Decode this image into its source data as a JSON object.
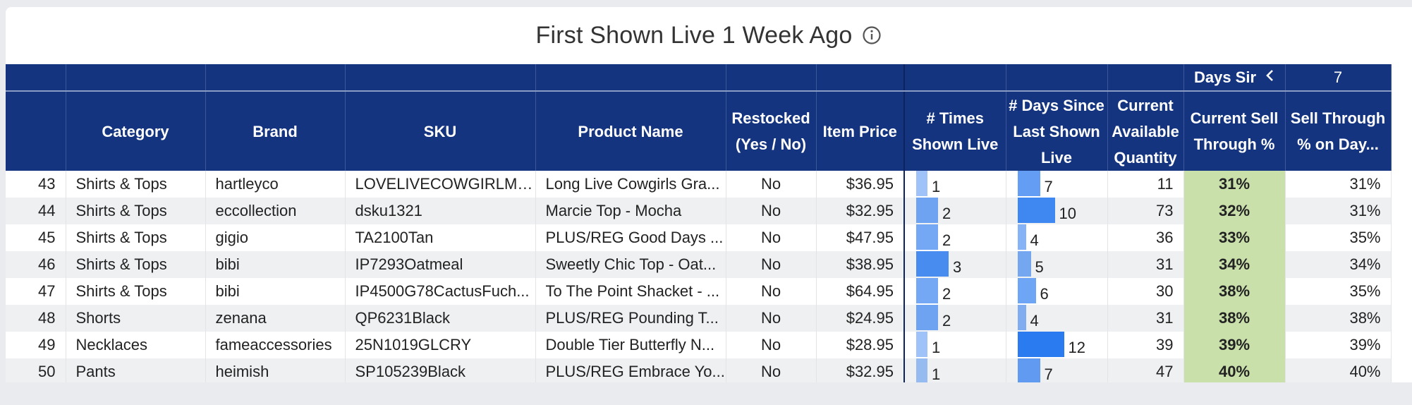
{
  "title": "First Shown Live 1 Week Ago",
  "icons": {
    "info": "info-icon",
    "chevron": "chevron-left-icon"
  },
  "header_top": {
    "days_since_label": "Days Sir",
    "days_value": "7"
  },
  "columns": {
    "category": "Category",
    "brand": "Brand",
    "sku": "SKU",
    "product_name": "Product Name",
    "restocked": "Restocked (Yes / No)",
    "item_price": "Item Price",
    "times_shown": "# Times Shown Live",
    "days_since": "# Days Since Last Shown Live",
    "available_qty": "Current Available Quantity",
    "sell_through": "Current Sell Through %",
    "sell_through_day": "Sell Through % on Day..."
  },
  "colors": {
    "header": "#14347f",
    "sell_highlight": "#c9e0ab",
    "bar": "#2a7af0"
  },
  "rows": [
    {
      "n": "43",
      "category": "Shirts & Tops",
      "brand": "hartleyco",
      "sku": "LOVELIVECOWGIRLMulti",
      "product": "Long Live Cowgirls Gra...",
      "restocked": "No",
      "price": "$36.95",
      "times": "1",
      "days": "7",
      "qty": "11",
      "sell": "31%",
      "sellday": "31%"
    },
    {
      "n": "44",
      "category": "Shirts & Tops",
      "brand": "eccollection",
      "sku": "dsku1321",
      "product": "Marcie Top - Mocha",
      "restocked": "No",
      "price": "$32.95",
      "times": "2",
      "days": "10",
      "qty": "73",
      "sell": "32%",
      "sellday": "31%"
    },
    {
      "n": "45",
      "category": "Shirts & Tops",
      "brand": "gigio",
      "sku": "TA2100Tan",
      "product": "PLUS/REG Good Days ...",
      "restocked": "No",
      "price": "$47.95",
      "times": "2",
      "days": "4",
      "qty": "36",
      "sell": "33%",
      "sellday": "35%"
    },
    {
      "n": "46",
      "category": "Shirts & Tops",
      "brand": "bibi",
      "sku": "IP7293Oatmeal",
      "product": "Sweetly Chic Top - Oat...",
      "restocked": "No",
      "price": "$38.95",
      "times": "3",
      "days": "5",
      "qty": "31",
      "sell": "34%",
      "sellday": "34%"
    },
    {
      "n": "47",
      "category": "Shirts & Tops",
      "brand": "bibi",
      "sku": "IP4500G78CactusFuch...",
      "product": "To The Point Shacket - ...",
      "restocked": "No",
      "price": "$64.95",
      "times": "2",
      "days": "6",
      "qty": "30",
      "sell": "38%",
      "sellday": "35%"
    },
    {
      "n": "48",
      "category": "Shorts",
      "brand": "zenana",
      "sku": "QP6231Black",
      "product": "PLUS/REG Pounding T...",
      "restocked": "No",
      "price": "$24.95",
      "times": "2",
      "days": "4",
      "qty": "31",
      "sell": "38%",
      "sellday": "38%"
    },
    {
      "n": "49",
      "category": "Necklaces",
      "brand": "fameaccessories",
      "sku": "25N1019GLCRY",
      "product": "Double Tier Butterfly N...",
      "restocked": "No",
      "price": "$28.95",
      "times": "1",
      "days": "12",
      "qty": "39",
      "sell": "39%",
      "sellday": "39%"
    },
    {
      "n": "50",
      "category": "Pants",
      "brand": "heimish",
      "sku": "SP105239Black",
      "product": "PLUS/REG Embrace Yo...",
      "restocked": "No",
      "price": "$32.95",
      "times": "1",
      "days": "7",
      "qty": "47",
      "sell": "40%",
      "sellday": "40%"
    }
  ]
}
